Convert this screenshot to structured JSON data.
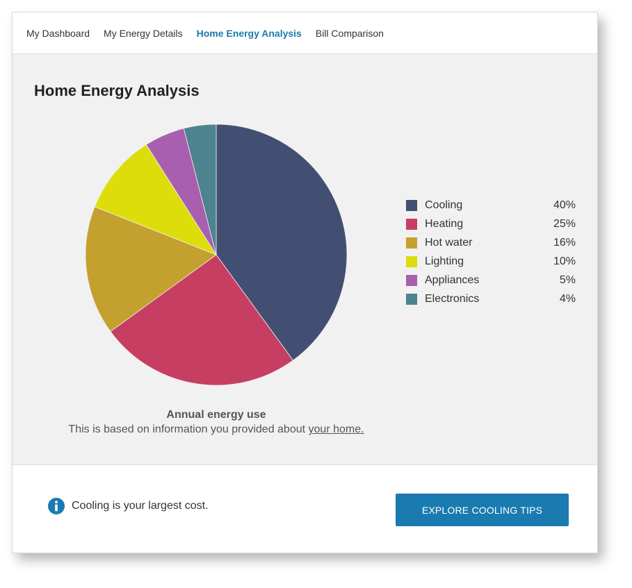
{
  "nav": {
    "items": [
      {
        "label": "My Dashboard",
        "active": false
      },
      {
        "label": "My Energy Details",
        "active": false
      },
      {
        "label": "Home Energy Analysis",
        "active": true
      },
      {
        "label": "Bill Comparison",
        "active": false
      }
    ]
  },
  "main": {
    "title": "Home Energy Analysis",
    "caption_title": "Annual energy use",
    "caption_text": "This is based on information you provided about ",
    "caption_link": "your home."
  },
  "chart_data": {
    "type": "pie",
    "title": "",
    "categories": [
      "Cooling",
      "Heating",
      "Hot water",
      "Lighting",
      "Appliances",
      "Electronics"
    ],
    "values": [
      40,
      25,
      16,
      10,
      5,
      4
    ],
    "value_labels": [
      "40%",
      "25%",
      "16%",
      "10%",
      "5%",
      "4%"
    ],
    "colors": [
      "#434f72",
      "#c63f62",
      "#c4a02f",
      "#dddd0b",
      "#a95fb0",
      "#4c838e"
    ],
    "legend_position": "right",
    "start_angle": "top",
    "direction": "clockwise"
  },
  "footer": {
    "message": "Cooling is your largest cost.",
    "cta_label": "EXPLORE COOLING TIPS",
    "info_icon": "info-icon"
  },
  "colors": {
    "accent": "#1a7bb0",
    "nav_active": "#1a7bab",
    "panel_background": "#f1f1f1"
  }
}
